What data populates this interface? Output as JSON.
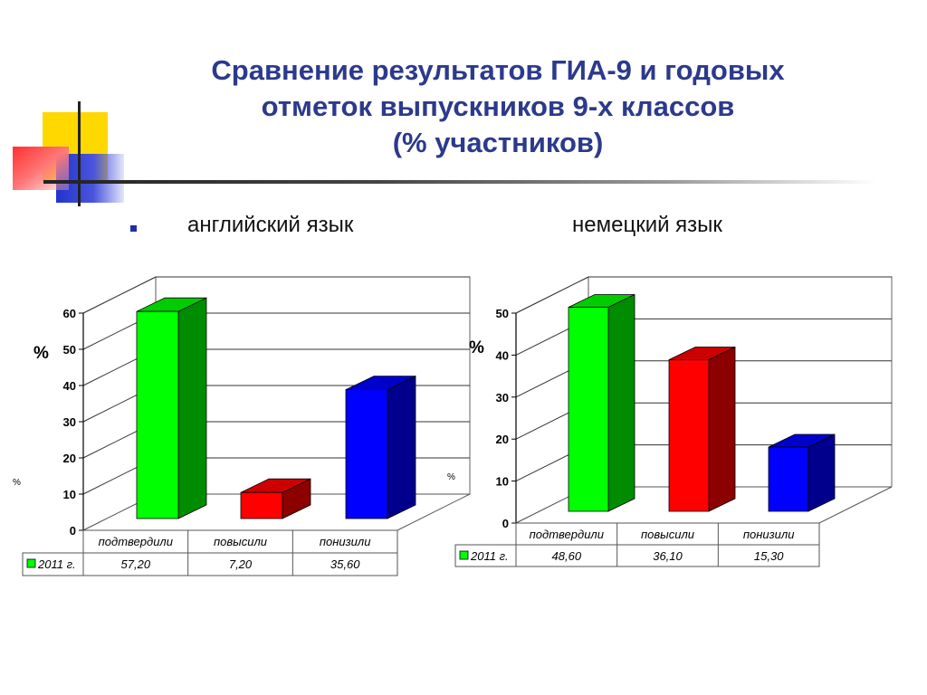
{
  "slide": {
    "title_lines": [
      "Сравнение результатов ГИА-9 и годовых",
      "отметок выпускников 9-х классов",
      "(% участников)"
    ]
  },
  "charts": [
    {
      "subtitle": "английский язык",
      "chart_data": {
        "type": "bar",
        "categories": [
          "подтвердили",
          "повысили",
          "понизили"
        ],
        "series": [
          {
            "name": "2011 г.",
            "values": [
              57.2,
              7.2,
              35.6
            ]
          }
        ],
        "value_labels": [
          "57,20",
          "7,20",
          "35,60"
        ],
        "ylim": [
          0,
          60
        ],
        "yticks": [
          0,
          10,
          20,
          30,
          40,
          50,
          60
        ],
        "ylabel": "%",
        "side_label": "%",
        "bar_colors": [
          "#00ff00",
          "#ff0000",
          "#0000ff"
        ],
        "grid": true,
        "legend": "data-table"
      }
    },
    {
      "subtitle": "немецкий язык",
      "chart_data": {
        "type": "bar",
        "categories": [
          "подтвердили",
          "повысили",
          "понизили"
        ],
        "series": [
          {
            "name": "2011 г.",
            "values": [
              48.6,
              36.1,
              15.3
            ]
          }
        ],
        "value_labels": [
          "48,60",
          "36,10",
          "15,30"
        ],
        "ylim": [
          0,
          50
        ],
        "yticks": [
          0,
          10,
          20,
          30,
          40,
          50
        ],
        "ylabel": "%",
        "side_label": "%",
        "bar_colors": [
          "#00ff00",
          "#ff0000",
          "#0000ff"
        ],
        "grid": true,
        "legend": "data-table"
      }
    }
  ],
  "colors": {
    "title": "#2c3a8c",
    "legend_swatch": "#00ff00"
  }
}
